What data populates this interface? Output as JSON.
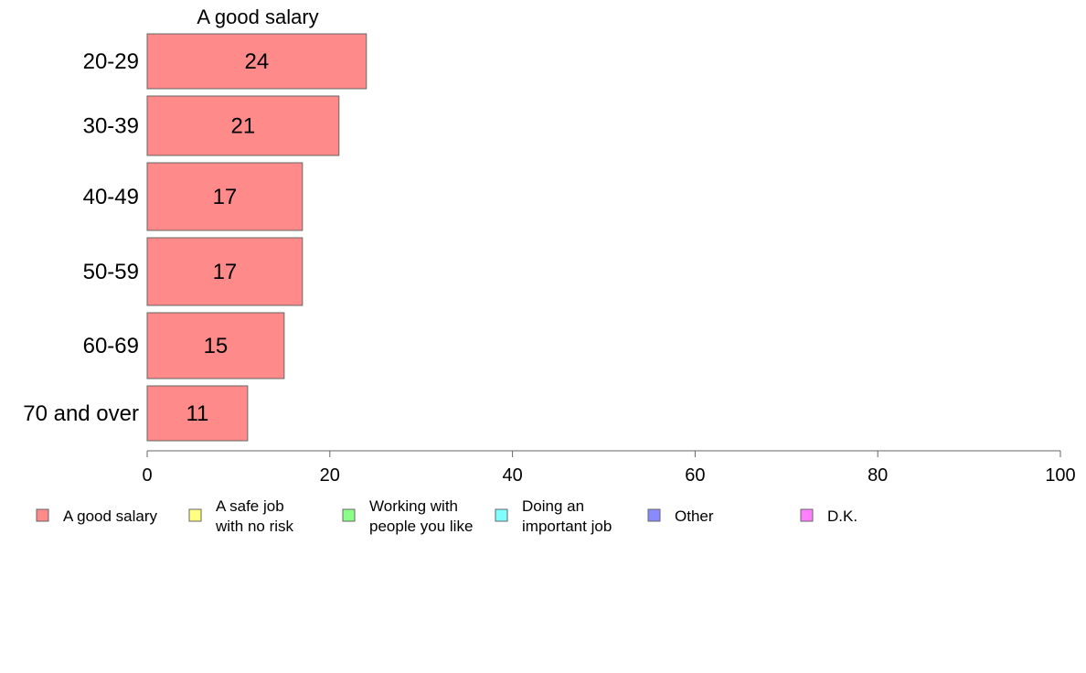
{
  "chart_data": {
    "type": "bar",
    "orientation": "horizontal",
    "title": "A good salary",
    "categories": [
      "20-29",
      "30-39",
      "40-49",
      "50-59",
      "60-69",
      "70 and over"
    ],
    "series": [
      {
        "name": "A good salary",
        "values": [
          24,
          21,
          17,
          17,
          15,
          11
        ],
        "color": "#ff8a8a"
      }
    ],
    "data_labels": [
      "24",
      "21",
      "17",
      "17",
      "15",
      "11"
    ],
    "xlim": [
      0,
      100
    ],
    "x_ticks": [
      0,
      20,
      40,
      60,
      80,
      100
    ],
    "grid": false,
    "legend_position": "bottom",
    "legend": [
      {
        "label": [
          "A good salary"
        ],
        "color": "#ff8a8a"
      },
      {
        "label": [
          "A safe job",
          "with no risk"
        ],
        "color": "#ffff80"
      },
      {
        "label": [
          "Working with",
          "people you like"
        ],
        "color": "#8aff8a"
      },
      {
        "label": [
          "Doing an",
          "important job"
        ],
        "color": "#80ffff"
      },
      {
        "label": [
          "Other"
        ],
        "color": "#8a8aff"
      },
      {
        "label": [
          "D.K."
        ],
        "color": "#ff80ff"
      }
    ]
  }
}
